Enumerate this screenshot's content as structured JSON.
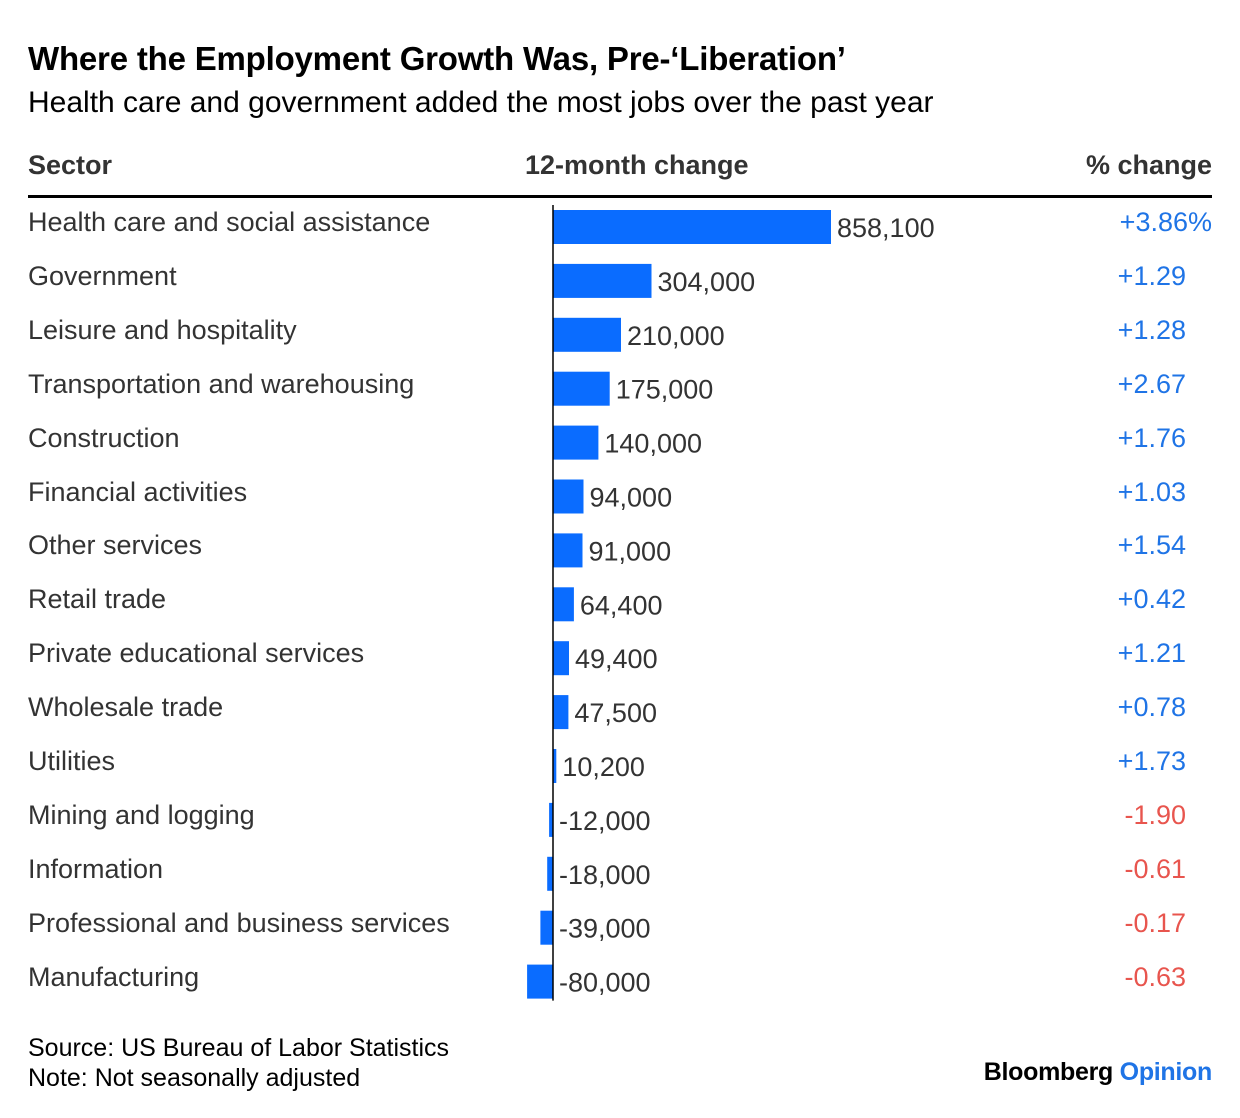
{
  "title": "Where the Employment Growth Was, Pre-‘Liberation’",
  "subtitle": "Health care and government added the most jobs over the past year",
  "headers": {
    "sector": "Sector",
    "change": "12-month change",
    "pct": "% change"
  },
  "footer": {
    "source": "Source: US Bureau of Labor Statistics",
    "note": "Note: Not seasonally adjusted"
  },
  "brand": {
    "name": "Bloomberg",
    "accent": "Opinion"
  },
  "colors": {
    "bar": "#0A6CFF",
    "positive": "#1F74E6",
    "negative": "#E8554E",
    "axis": "#000000"
  },
  "chart_data": {
    "type": "bar",
    "orientation": "horizontal",
    "title": "Where the Employment Growth Was, Pre-‘Liberation’",
    "subtitle": "Health care and government added the most jobs over the past year",
    "categories": [
      "Health care and social assistance",
      "Government",
      "Leisure and hospitality",
      "Transportation and warehousing",
      "Construction",
      "Financial activities",
      "Other services",
      "Retail trade",
      "Private educational services",
      "Wholesale trade",
      "Utilities",
      "Mining and logging",
      "Information",
      "Professional and business services",
      "Manufacturing"
    ],
    "values": [
      858100,
      304000,
      210000,
      175000,
      140000,
      94000,
      91000,
      64400,
      49400,
      47500,
      10200,
      -12000,
      -18000,
      -39000,
      -80000
    ],
    "value_labels": [
      "858,100",
      "304,000",
      "210,000",
      "175,000",
      "140,000",
      "94,000",
      "91,000",
      "64,400",
      "49,400",
      "47,500",
      "10,200",
      "-12,000",
      "-18,000",
      "-39,000",
      "-80,000"
    ],
    "pct_labels": [
      "+3.86%",
      "+1.29",
      "+1.28",
      "+2.67",
      "+1.76",
      "+1.03",
      "+1.54",
      "+0.42",
      "+1.21",
      "+0.78",
      "+1.73",
      "-1.90",
      "-0.61",
      "-0.17",
      "-0.63"
    ],
    "xlim": [
      -80000,
      858100
    ],
    "xlabel": "12-month change",
    "ylabel": "Sector"
  }
}
